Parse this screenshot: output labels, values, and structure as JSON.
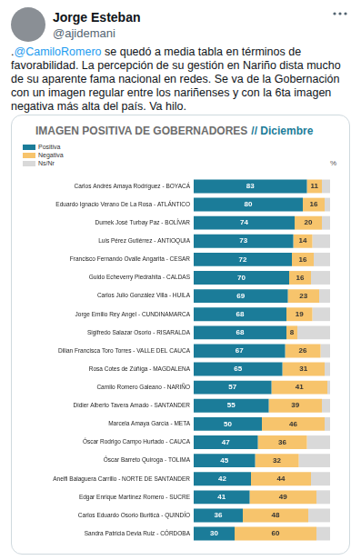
{
  "tweet": {
    "author": "Jorge Esteban",
    "handle": "@ajidemani",
    "text": [
      {
        "text": ".",
        "link": false
      },
      {
        "text": "@CamiloRomero",
        "link": true
      },
      {
        "text": " se quedó a media tabla en términos de favorabilidad. La percepción de su gestión en Nariño dista mucho de su aparente fama nacional en redes. Se va de la Gobernación con un imagen regular entre los nariñenses y con la 6ta imagen negativa más alta del país. Va hilo.",
        "link": false
      }
    ]
  },
  "chart_data": {
    "type": "bar",
    "orientation": "horizontal",
    "stacked": true,
    "title": "IMAGEN POSITIVA DE GOBERNADORES",
    "subtitle": "// Diciembre",
    "annotations": [
      "%"
    ],
    "categories": [
      "Carlos Andrés Amaya Rodríguez - BOYACÁ",
      "Eduardo Ignacio Verano De La Rosa - ATLÁNTICO",
      "Dumek José Turbay Paz - BOLÍVAR",
      "Luis Pérez Gutiérrez - ANTIOQUIA",
      "Francisco Fernando Ovalle Angarita - CESAR",
      "Guido Echeverry Piedrahita - CALDAS",
      "Carlos Julio González Villa - HUILA",
      "Jorge Emilio Rey Angel - CUNDINAMARCA",
      "Sigifredo Salazar Osorio - RISARALDA",
      "Dilian Francisca Toro Torres - VALLE DEL CAUCA",
      "Rosa Cotes de Zúñiga - MAGDALENA",
      "Camilo Romero Galeano - NARIÑO",
      "Didier Alberto Tavera Amado - SANTANDER",
      "Marcela Amaya García - META",
      "Óscar Rodrigo Campo Hurtado - CAUCA",
      "Óscar Barreto Quiroga - TOLIMA",
      "Anelfi Balaguera Carrillo - NORTE DE SANTANDER",
      "Edgar Enrique Martínez Romero - SUCRE",
      "Carlos Eduardo Osorio Buriticá - QUINDÍO",
      "Sandra Patricia Devia Ruiz - CÓRDOBA"
    ],
    "series": [
      {
        "name": "Positiva",
        "color": "#1b7c99",
        "data_labels": true,
        "values": [
          83,
          80,
          74,
          73,
          72,
          70,
          69,
          68,
          68,
          67,
          65,
          57,
          55,
          50,
          47,
          45,
          42,
          41,
          36,
          30
        ]
      },
      {
        "name": "Negativa",
        "color": "#f7c46c",
        "data_labels": true,
        "values": [
          11,
          16,
          20,
          14,
          16,
          16,
          23,
          19,
          8,
          26,
          31,
          41,
          39,
          46,
          36,
          32,
          44,
          49,
          48,
          60
        ]
      },
      {
        "name": "Ns/Nr",
        "color": "#d9d9d9",
        "data_labels": false,
        "values": [
          6,
          4,
          6,
          13,
          12,
          14,
          8,
          13,
          24,
          7,
          4,
          2,
          6,
          4,
          17,
          23,
          14,
          10,
          16,
          10
        ]
      }
    ],
    "xlim": [
      0,
      100
    ],
    "legend": "top-left",
    "grid": false,
    "tick_labels": "y"
  }
}
